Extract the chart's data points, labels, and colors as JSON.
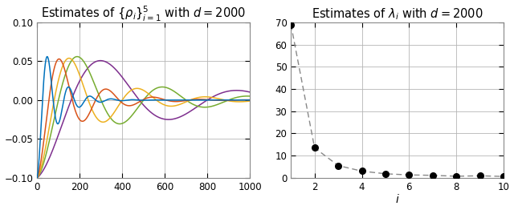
{
  "left_title": "Estimates of $\\{\\rho_i\\}_{i=1}^5$ with $d = 2000$",
  "right_title": "Estimates of $\\lambda_i$ with $d = 2000$",
  "left_xlim": [
    0,
    1000
  ],
  "left_ylim": [
    -0.1,
    0.1
  ],
  "left_yticks": [
    -0.1,
    -0.05,
    0,
    0.05,
    0.1
  ],
  "left_xticks": [
    0,
    200,
    400,
    600,
    800,
    1000
  ],
  "right_xlim": [
    1,
    10
  ],
  "right_ylim": [
    0,
    70
  ],
  "right_yticks": [
    0,
    10,
    20,
    30,
    40,
    50,
    60,
    70
  ],
  "right_xticks": [
    2,
    4,
    6,
    8,
    10
  ],
  "right_xlabel": "i",
  "lambda_x": [
    1,
    2,
    3,
    4,
    5,
    6,
    7,
    8,
    9,
    10
  ],
  "lambda_y": [
    69,
    13.5,
    5.5,
    3.0,
    1.8,
    1.3,
    1.1,
    0.7,
    0.9,
    0.6
  ],
  "line_colors": [
    "#0072BD",
    "#D95319",
    "#EDB120",
    "#77AC30",
    "#7E2F8E"
  ],
  "bg_color": "#ffffff",
  "grid_color": "#b5b5b5",
  "title_fontsize": 10.5,
  "curve_params": [
    {
      "alpha": 0.03,
      "omega": 0.0314,
      "A": -0.1
    },
    {
      "alpha": 0.015,
      "omega": 0.0157,
      "A": -0.1
    },
    {
      "alpha": 0.01,
      "omega": 0.01047,
      "A": -0.1
    },
    {
      "alpha": 0.0075,
      "omega": 0.00785,
      "A": -0.1
    },
    {
      "alpha": 0.005,
      "omega": 0.00524,
      "A": -0.1
    }
  ]
}
